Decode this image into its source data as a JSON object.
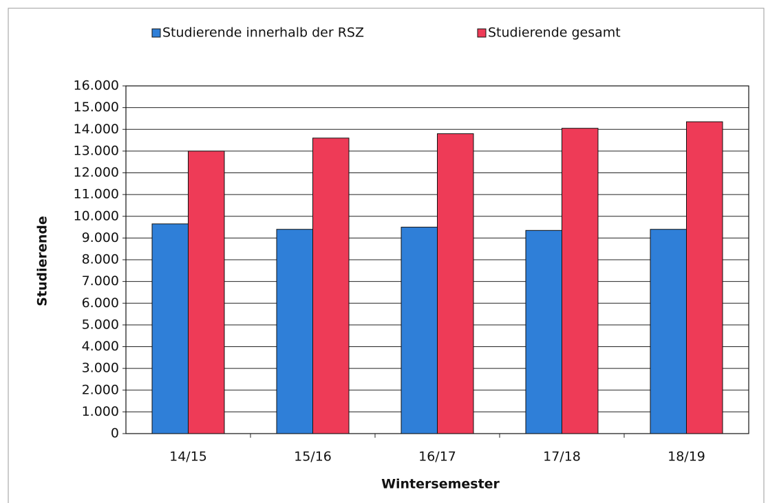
{
  "chart_data": {
    "type": "bar",
    "xlabel": "Wintersemester",
    "ylabel": "Studierende",
    "categories": [
      "14/15",
      "15/16",
      "16/17",
      "17/18",
      "18/19"
    ],
    "series": [
      {
        "name": "Studierende innerhalb der RSZ",
        "color": "#2f7fd8",
        "values": [
          9650,
          9400,
          9500,
          9350,
          9400
        ]
      },
      {
        "name": "Studierende gesamt",
        "color": "#ee3b57",
        "values": [
          13000,
          13600,
          13800,
          14050,
          14350
        ]
      }
    ],
    "ylim": [
      0,
      16000
    ],
    "yticks": [
      0,
      {
        "value": 1000,
        "label": "1.000"
      },
      {
        "value": 2000,
        "label": "2.000"
      },
      {
        "value": 3000,
        "label": "3.000"
      },
      {
        "value": 4000,
        "label": "4.000"
      },
      {
        "value": 5000,
        "label": "5.000"
      },
      {
        "value": 6000,
        "label": "6.000"
      },
      {
        "value": 7000,
        "label": "7.000"
      },
      {
        "value": 8000,
        "label": "8.000"
      },
      {
        "value": 9000,
        "label": "9.000"
      },
      {
        "value": 10000,
        "label": "10.000"
      },
      {
        "value": 11000,
        "label": "11.000"
      },
      {
        "value": 12000,
        "label": "12.000"
      },
      {
        "value": 13000,
        "label": "13.000"
      },
      {
        "value": 14000,
        "label": "14.000"
      },
      {
        "value": 15000,
        "label": "15.000"
      },
      {
        "value": 16000,
        "label": "16.000"
      }
    ],
    "grid": true,
    "legend": "top"
  }
}
